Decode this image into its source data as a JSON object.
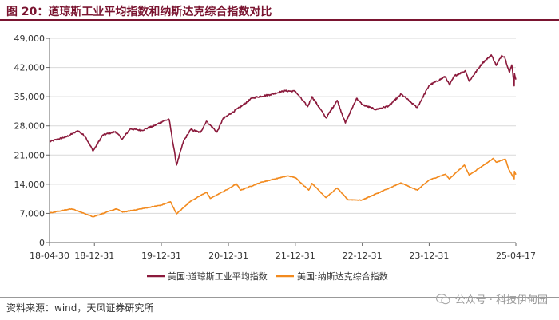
{
  "title": "图 20：道琼斯工业平均指数和纳斯达克综合指数对比",
  "source": "资料来源：wind，天风证券研究所",
  "watermark": "公众号 · 科技伊甸园",
  "chart_data": {
    "type": "line",
    "x_tick_labels": [
      "18-04-30",
      "18-12-31",
      "19-12-31",
      "20-12-31",
      "21-12-31",
      "22-12-31",
      "23-12-31",
      "25-04-17"
    ],
    "x_tick_dates": [
      "2018-04-30",
      "2018-12-31",
      "2019-12-31",
      "2020-12-31",
      "2021-12-31",
      "2022-12-31",
      "2023-12-31",
      "2025-04-17"
    ],
    "y_tick_labels": [
      "0",
      "7,000",
      "14,000",
      "21,000",
      "28,000",
      "35,000",
      "42,000",
      "49,000"
    ],
    "ylim": [
      0,
      49000
    ],
    "legend_position": "bottom",
    "series": [
      {
        "name": "美国:道琼斯工业平均指数",
        "color": "#8b1a3c",
        "points": [
          [
            "2018-04-30",
            24200
          ],
          [
            "2018-06-15",
            24800
          ],
          [
            "2018-08-01",
            25400
          ],
          [
            "2018-10-03",
            26800
          ],
          [
            "2018-11-10",
            25500
          ],
          [
            "2018-12-24",
            22000
          ],
          [
            "2019-02-15",
            25800
          ],
          [
            "2019-04-25",
            26600
          ],
          [
            "2019-06-01",
            24800
          ],
          [
            "2019-07-15",
            27300
          ],
          [
            "2019-09-15",
            26900
          ],
          [
            "2019-11-25",
            28100
          ],
          [
            "2020-01-17",
            29300
          ],
          [
            "2020-02-12",
            29500
          ],
          [
            "2020-03-23",
            18600
          ],
          [
            "2020-04-30",
            24300
          ],
          [
            "2020-06-08",
            27100
          ],
          [
            "2020-07-31",
            26400
          ],
          [
            "2020-09-02",
            29100
          ],
          [
            "2020-10-30",
            26500
          ],
          [
            "2020-11-30",
            29600
          ],
          [
            "2020-12-31",
            30600
          ],
          [
            "2021-03-15",
            32800
          ],
          [
            "2021-05-10",
            34700
          ],
          [
            "2021-08-15",
            35500
          ],
          [
            "2021-11-05",
            36400
          ],
          [
            "2021-12-31",
            36300
          ],
          [
            "2022-03-08",
            32600
          ],
          [
            "2022-04-01",
            35000
          ],
          [
            "2022-06-17",
            29900
          ],
          [
            "2022-08-16",
            34100
          ],
          [
            "2022-09-30",
            28700
          ],
          [
            "2022-11-30",
            34600
          ],
          [
            "2022-12-31",
            33100
          ],
          [
            "2023-03-15",
            31900
          ],
          [
            "2023-05-25",
            32800
          ],
          [
            "2023-07-31",
            35600
          ],
          [
            "2023-10-27",
            32400
          ],
          [
            "2023-12-31",
            37700
          ],
          [
            "2024-03-28",
            39800
          ],
          [
            "2024-04-20",
            37800
          ],
          [
            "2024-05-17",
            40000
          ],
          [
            "2024-07-17",
            41200
          ],
          [
            "2024-08-05",
            38700
          ],
          [
            "2024-10-15",
            43000
          ],
          [
            "2024-12-04",
            45000
          ],
          [
            "2024-12-31",
            42500
          ],
          [
            "2025-01-30",
            44900
          ],
          [
            "2025-02-15",
            44500
          ],
          [
            "2025-03-13",
            40800
          ],
          [
            "2025-03-26",
            42600
          ],
          [
            "2025-04-08",
            37600
          ],
          [
            "2025-04-09",
            40600
          ],
          [
            "2025-04-17",
            39100
          ]
        ]
      },
      {
        "name": "美国:纳斯达克综合指数",
        "color": "#f28a1e",
        "points": [
          [
            "2018-04-30",
            7100
          ],
          [
            "2018-08-29",
            8100
          ],
          [
            "2018-12-24",
            6200
          ],
          [
            "2019-04-30",
            8100
          ],
          [
            "2019-06-03",
            7300
          ],
          [
            "2019-12-31",
            9000
          ],
          [
            "2020-02-19",
            9800
          ],
          [
            "2020-03-23",
            6900
          ],
          [
            "2020-06-10",
            10000
          ],
          [
            "2020-09-02",
            12100
          ],
          [
            "2020-09-23",
            10600
          ],
          [
            "2020-12-31",
            12900
          ],
          [
            "2021-02-12",
            14100
          ],
          [
            "2021-03-08",
            12600
          ],
          [
            "2021-06-30",
            14500
          ],
          [
            "2021-11-19",
            16000
          ],
          [
            "2021-12-31",
            15600
          ],
          [
            "2022-03-14",
            12600
          ],
          [
            "2022-04-01",
            14200
          ],
          [
            "2022-06-16",
            10800
          ],
          [
            "2022-08-16",
            13100
          ],
          [
            "2022-10-13",
            10300
          ],
          [
            "2022-12-28",
            10200
          ],
          [
            "2023-07-31",
            14300
          ],
          [
            "2023-10-27",
            12600
          ],
          [
            "2023-12-31",
            15000
          ],
          [
            "2024-03-28",
            16400
          ],
          [
            "2024-04-19",
            15300
          ],
          [
            "2024-07-10",
            18600
          ],
          [
            "2024-08-05",
            16200
          ],
          [
            "2024-12-16",
            20200
          ],
          [
            "2024-12-31",
            19300
          ],
          [
            "2025-02-19",
            20000
          ],
          [
            "2025-03-10",
            17500
          ],
          [
            "2025-04-08",
            15300
          ],
          [
            "2025-04-09",
            17100
          ],
          [
            "2025-04-17",
            16300
          ]
        ]
      }
    ]
  }
}
